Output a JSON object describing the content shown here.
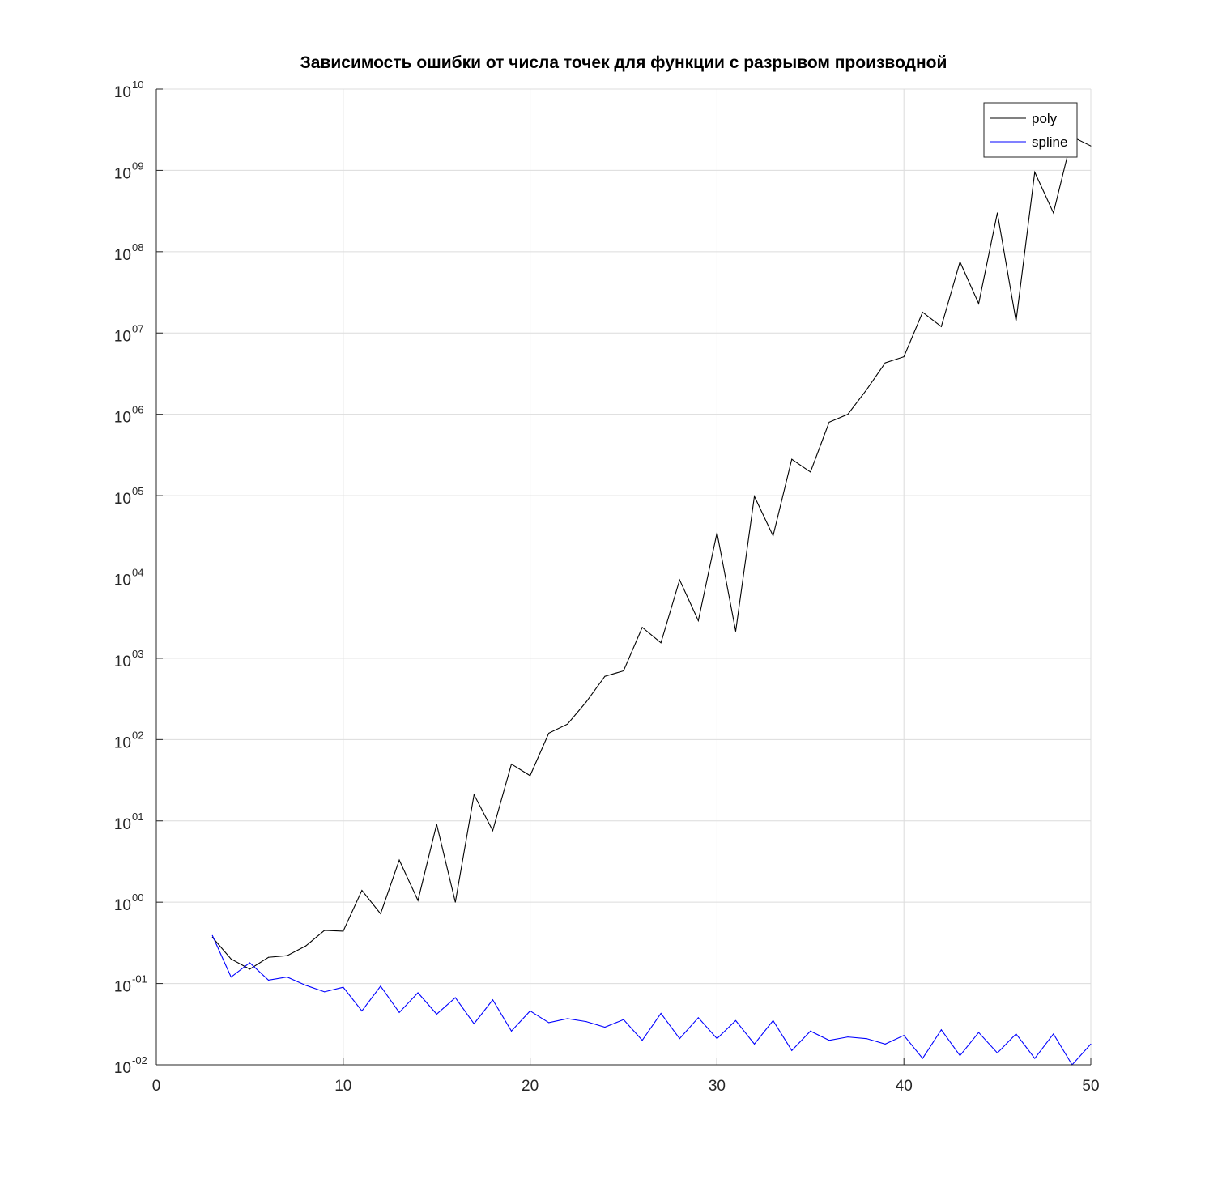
{
  "chart_data": {
    "type": "line",
    "title": "Зависимость ошибки от числа точек для функции с разрывом производной",
    "xlabel": "",
    "ylabel": "",
    "xlim": [
      0,
      50
    ],
    "ylim": [
      0.01,
      10000000000
    ],
    "yscale": "log",
    "grid": true,
    "legend_position": "top-right",
    "x_ticks": [
      {
        "value": 0,
        "label": "0"
      },
      {
        "value": 10,
        "label": "10"
      },
      {
        "value": 20,
        "label": "20"
      },
      {
        "value": 30,
        "label": "30"
      },
      {
        "value": 40,
        "label": "40"
      },
      {
        "value": 50,
        "label": "50"
      }
    ],
    "y_ticks": [
      {
        "exp": -2,
        "base": "10",
        "sup": "-02"
      },
      {
        "exp": -1,
        "base": "10",
        "sup": "-01"
      },
      {
        "exp": 0,
        "base": "10",
        "sup": "00"
      },
      {
        "exp": 1,
        "base": "10",
        "sup": "01"
      },
      {
        "exp": 2,
        "base": "10",
        "sup": "02"
      },
      {
        "exp": 3,
        "base": "10",
        "sup": "03"
      },
      {
        "exp": 4,
        "base": "10",
        "sup": "04"
      },
      {
        "exp": 5,
        "base": "10",
        "sup": "05"
      },
      {
        "exp": 6,
        "base": "10",
        "sup": "06"
      },
      {
        "exp": 7,
        "base": "10",
        "sup": "07"
      },
      {
        "exp": 8,
        "base": "10",
        "sup": "08"
      },
      {
        "exp": 9,
        "base": "10",
        "sup": "09"
      },
      {
        "exp": 10,
        "base": "10",
        "sup": "10"
      }
    ],
    "x": [
      3,
      4,
      5,
      6,
      7,
      8,
      9,
      10,
      11,
      12,
      13,
      14,
      15,
      16,
      17,
      18,
      19,
      20,
      21,
      22,
      23,
      24,
      25,
      26,
      27,
      28,
      29,
      30,
      31,
      32,
      33,
      34,
      35,
      36,
      37,
      38,
      39,
      40,
      41,
      42,
      43,
      44,
      45,
      46,
      47,
      48,
      49,
      50
    ],
    "series": [
      {
        "name": "poly",
        "color": "#000000",
        "values": [
          0.37,
          0.2,
          0.15,
          0.21,
          0.22,
          0.29,
          0.45,
          0.44,
          1.4,
          0.72,
          3.3,
          1.05,
          9.1,
          1.0,
          21,
          7.6,
          50,
          36,
          120,
          155,
          290,
          600,
          700,
          2400,
          1550,
          9200,
          2900,
          35000,
          2150,
          98000,
          32000,
          280000,
          195000,
          800000,
          1000000,
          2000000,
          4300000,
          5100000,
          18000000,
          12000000,
          75000000,
          23000000,
          300000000,
          14000000,
          950000000,
          300000000,
          2600000000,
          2000000000
        ]
      },
      {
        "name": "spline",
        "color": "#0000ff",
        "values": [
          0.39,
          0.12,
          0.18,
          0.11,
          0.12,
          0.095,
          0.079,
          0.09,
          0.046,
          0.093,
          0.044,
          0.077,
          0.042,
          0.067,
          0.032,
          0.063,
          0.026,
          0.046,
          0.033,
          0.037,
          0.034,
          0.029,
          0.036,
          0.02,
          0.043,
          0.021,
          0.038,
          0.021,
          0.035,
          0.018,
          0.035,
          0.015,
          0.026,
          0.02,
          0.022,
          0.021,
          0.018,
          0.023,
          0.012,
          0.027,
          0.013,
          0.025,
          0.014,
          0.024,
          0.012,
          0.024,
          0.01,
          0.018
        ]
      }
    ]
  }
}
